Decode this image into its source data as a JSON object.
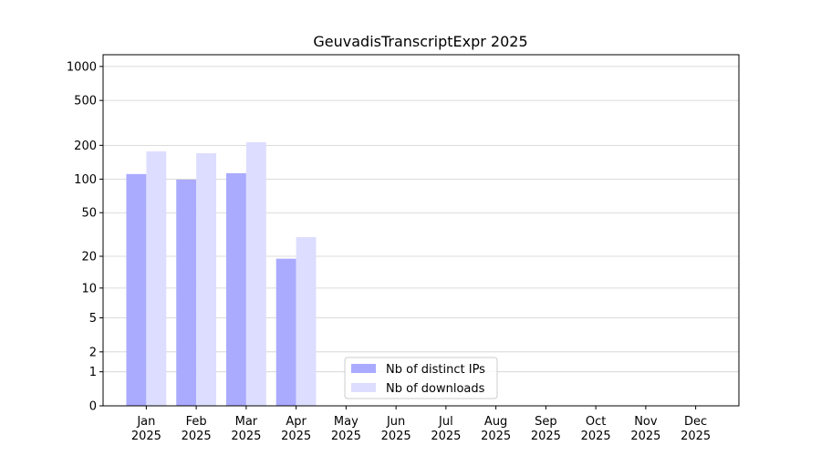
{
  "chart_data": {
    "type": "bar",
    "title": "GeuvadisTranscriptExpr 2025",
    "categories": [
      "Jan\n2025",
      "Feb\n2025",
      "Mar\n2025",
      "Apr\n2025",
      "May\n2025",
      "Jun\n2025",
      "Jul\n2025",
      "Aug\n2025",
      "Sep\n2025",
      "Oct\n2025",
      "Nov\n2025",
      "Dec\n2025"
    ],
    "series": [
      {
        "name": "Nb of distinct IPs",
        "color": "#aaaaff",
        "values": [
          111,
          99,
          113,
          19,
          null,
          null,
          null,
          null,
          null,
          null,
          null,
          null
        ]
      },
      {
        "name": "Nb of downloads",
        "color": "#ddddff",
        "values": [
          177,
          170,
          213,
          30,
          null,
          null,
          null,
          null,
          null,
          null,
          null,
          null
        ]
      }
    ],
    "yscale": "log1p",
    "ylim": [
      0,
      1270
    ],
    "yticks": [
      0,
      1,
      2,
      5,
      10,
      20,
      50,
      100,
      200,
      500,
      1000
    ],
    "grid": true,
    "legend": "lower center"
  }
}
